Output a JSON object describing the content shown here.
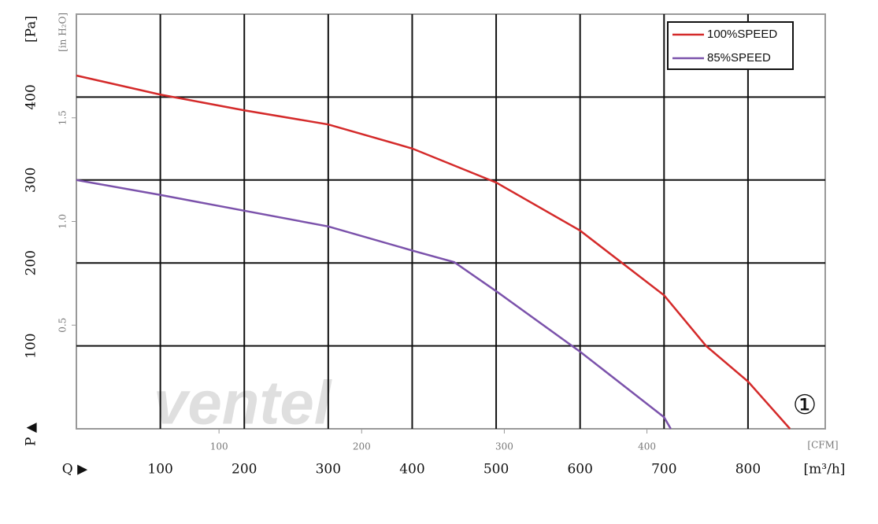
{
  "chart_data": {
    "type": "line",
    "y_label": "[Pa]",
    "y2_label": "[in H₂O]",
    "x_label": "[m³/h]",
    "x2_label": "[CFM]",
    "y_symbol": "P ▲",
    "x_symbol": "Q ▶",
    "annotation": "①",
    "watermark": "ventel",
    "xlim": [
      0,
      892
    ],
    "xticks": [
      100,
      200,
      300,
      400,
      500,
      600,
      700,
      800
    ],
    "ylim": [
      0,
      500
    ],
    "yticks": [
      100,
      200,
      300,
      400
    ],
    "y2lim": [
      0,
      2.0
    ],
    "y2ticks": [
      0.5,
      {
        "value": 1,
        "label": "1.0"
      },
      1.5
    ],
    "x2lim": [
      0,
      525
    ],
    "x2ticks": [
      100,
      200,
      300,
      400
    ],
    "grid": true,
    "legend": "top-right",
    "series": [
      {
        "name": "100%SPEED",
        "color": "#d42a2a",
        "x": [
          0,
          100,
          200,
          300,
          400,
          500,
          600,
          700,
          750,
          800,
          850
        ],
        "values": [
          426,
          403,
          384,
          367,
          338,
          297,
          239,
          161,
          100,
          57,
          0
        ]
      },
      {
        "name": "85%SPEED",
        "color": "#7b52ab",
        "x": [
          0,
          100,
          200,
          300,
          400,
          450,
          500,
          600,
          700,
          708
        ],
        "values": [
          300,
          282,
          263,
          244,
          215,
          201,
          166,
          93,
          14,
          0
        ]
      }
    ]
  }
}
